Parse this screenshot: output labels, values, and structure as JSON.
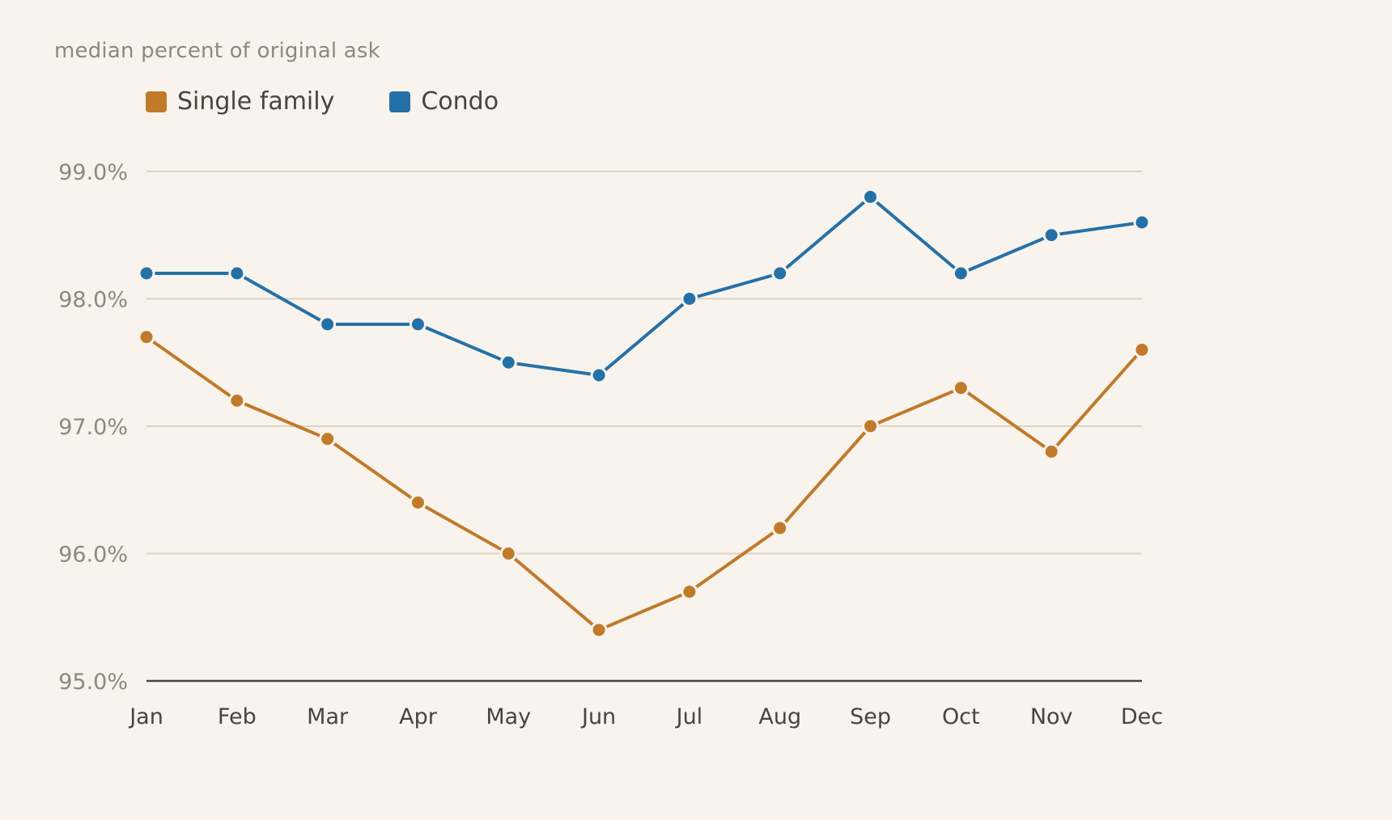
{
  "subtitle": "median percent of original ask",
  "colors": {
    "background": "#f8f3ec",
    "gridline": "#ddd3c2",
    "axis": "#4a4540",
    "single_family": "#c07a2a",
    "condo": "#2471a8"
  },
  "chart_data": {
    "type": "line",
    "title": "",
    "ylabel": "median percent of original ask",
    "xlabel": "",
    "categories": [
      "Jan",
      "Feb",
      "Mar",
      "Apr",
      "May",
      "Jun",
      "Jul",
      "Aug",
      "Sep",
      "Oct",
      "Nov",
      "Dec"
    ],
    "ylim": [
      95.0,
      99.0
    ],
    "yticks": [
      "95.0%",
      "96.0%",
      "97.0%",
      "98.0%",
      "99.0%"
    ],
    "grid": true,
    "legend_position": "top-left",
    "series": [
      {
        "name": "Single family",
        "color": "#c07a2a",
        "values": [
          97.7,
          97.2,
          96.9,
          96.4,
          96.0,
          95.4,
          95.7,
          96.2,
          97.0,
          97.3,
          96.8,
          97.6
        ]
      },
      {
        "name": "Condo",
        "color": "#2471a8",
        "values": [
          98.2,
          98.2,
          97.8,
          97.8,
          97.5,
          97.4,
          98.0,
          98.2,
          98.8,
          98.2,
          98.5,
          98.6
        ]
      }
    ]
  }
}
